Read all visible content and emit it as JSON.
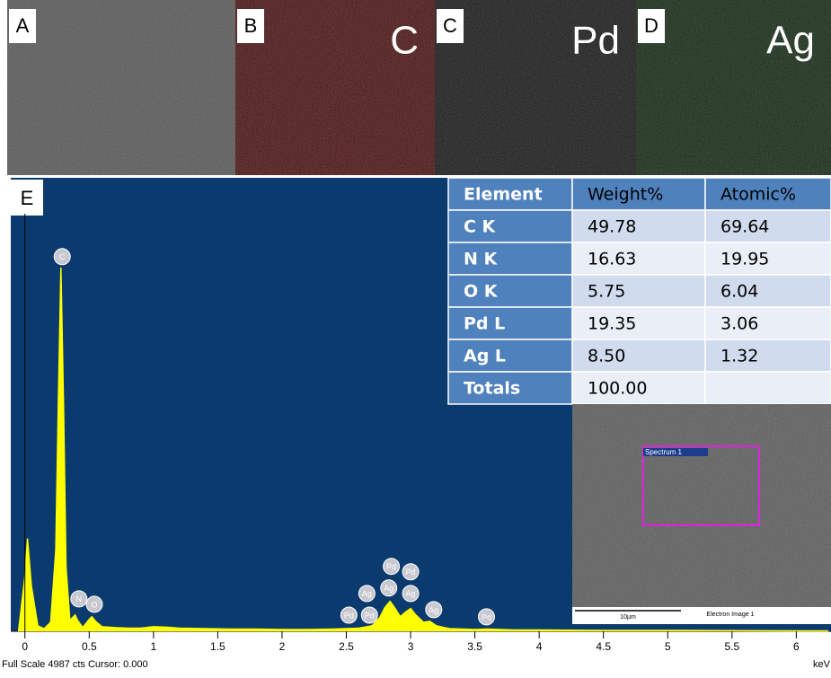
{
  "panels": [
    {
      "label": "A"
    },
    {
      "label": "B",
      "element": "C"
    },
    {
      "label": "C",
      "element": "Pd"
    },
    {
      "label": "D",
      "element": "Ag"
    }
  ],
  "chart_data": {
    "type": "area",
    "panel_label": "E",
    "x": [
      -0.05,
      0,
      0.02,
      0.05,
      0.1,
      0.15,
      0.2,
      0.24,
      0.26,
      0.28,
      0.3,
      0.32,
      0.35,
      0.37,
      0.39,
      0.41,
      0.45,
      0.5,
      0.52,
      0.55,
      0.6,
      0.7,
      0.8,
      0.9,
      1.0,
      1.1,
      1.2,
      1.4,
      1.6,
      1.8,
      2.0,
      2.2,
      2.4,
      2.5,
      2.6,
      2.7,
      2.76,
      2.8,
      2.84,
      2.88,
      2.92,
      2.96,
      3.0,
      3.04,
      3.1,
      3.15,
      3.2,
      3.3,
      3.5,
      3.6,
      3.8,
      4.0,
      4.5,
      5.0,
      5.5,
      6.0,
      6.25
    ],
    "values": [
      0,
      600,
      1020,
      500,
      60,
      30,
      100,
      900,
      2500,
      4000,
      2500,
      700,
      120,
      150,
      180,
      120,
      40,
      130,
      160,
      110,
      50,
      40,
      35,
      35,
      50,
      45,
      35,
      30,
      25,
      25,
      20,
      20,
      25,
      30,
      35,
      60,
      150,
      260,
      330,
      250,
      160,
      210,
      250,
      180,
      100,
      110,
      60,
      30,
      20,
      25,
      15,
      15,
      10,
      10,
      8,
      5,
      5
    ],
    "color": "#ffff00",
    "xlim": [
      -0.11,
      6.27
    ],
    "ylim": [
      0,
      4987
    ],
    "xticks": [
      0,
      0.5,
      1,
      1.5,
      2,
      2.5,
      3,
      3.5,
      4,
      4.5,
      5,
      5.5,
      6
    ],
    "x_label": "keV",
    "footer": "Full Scale 4987 cts Cursor: 0.000",
    "annotations": [
      {
        "text": "C",
        "x": 0.29,
        "y": 4120
      },
      {
        "text": "N",
        "x": 0.42,
        "y": 357
      },
      {
        "text": "O",
        "x": 0.54,
        "y": 297
      },
      {
        "text": "Pd",
        "x": 2.52,
        "y": 178
      },
      {
        "text": "Pd",
        "x": 2.68,
        "y": 178
      },
      {
        "text": "Ag",
        "x": 2.66,
        "y": 416
      },
      {
        "text": "Ag",
        "x": 2.83,
        "y": 476
      },
      {
        "text": "Pd",
        "x": 2.85,
        "y": 714
      },
      {
        "text": "Pd",
        "x": 3.0,
        "y": 654
      },
      {
        "text": "Ag",
        "x": 3.0,
        "y": 416
      },
      {
        "text": "Ag",
        "x": 3.18,
        "y": 238
      },
      {
        "text": "Pd",
        "x": 3.59,
        "y": 159
      }
    ]
  },
  "table": {
    "header": [
      "Element",
      "Weight%",
      "Atomic%"
    ],
    "rows": [
      [
        "C K",
        "49.78",
        "69.64"
      ],
      [
        "N K",
        "16.63",
        "19.95"
      ],
      [
        "O K",
        "5.75",
        "6.04"
      ],
      [
        "Pd L",
        "19.35",
        "3.06"
      ],
      [
        "Ag L",
        "8.50",
        "1.32"
      ],
      [
        "Totals",
        "100.00"
      ]
    ]
  },
  "inset": {
    "spectrum_label": "Spectrum 1",
    "scale_label": "10µm",
    "image_label": "Electron Image 1"
  }
}
